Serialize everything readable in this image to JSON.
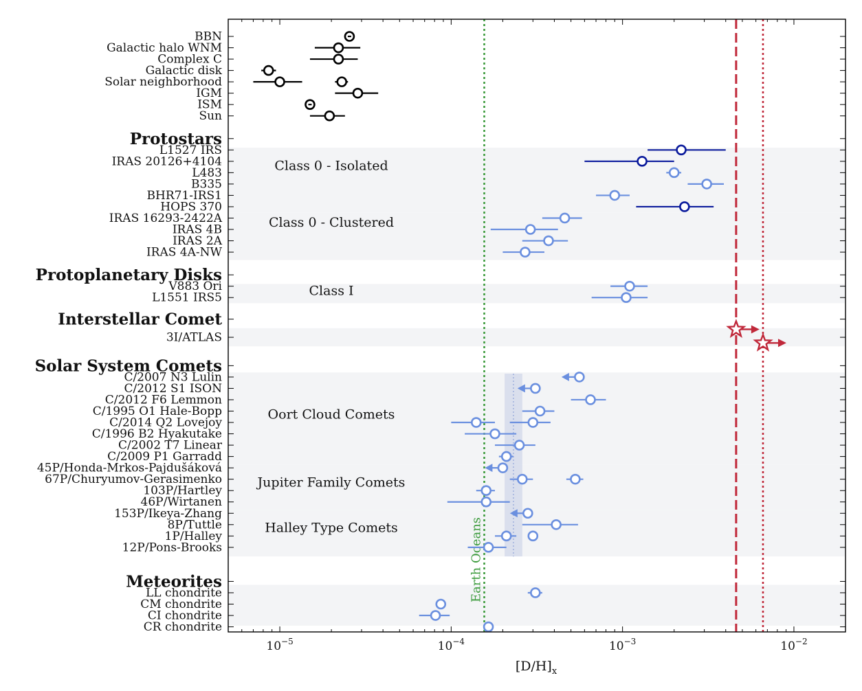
{
  "chart_data": {
    "type": "scatter",
    "xscale": "log",
    "xlim": [
      5e-06,
      0.02
    ],
    "xlabel": "[D/H]x",
    "xticks": [
      {
        "value": 1e-05,
        "base": "10",
        "exp": "−5"
      },
      {
        "value": 0.0001,
        "base": "10",
        "exp": "−4"
      },
      {
        "value": 0.001,
        "base": "10",
        "exp": "−3"
      },
      {
        "value": 0.01,
        "base": "10",
        "exp": "−2"
      }
    ],
    "colors": {
      "black": "#000000",
      "navy": "#0a1a9c",
      "light": "#6a8fdf",
      "red": "#c0283a",
      "green": "#3a9a3a",
      "band": "#f3f4f6",
      "shade": "#c5cde6"
    },
    "headers": [
      {
        "text": "Protostars",
        "row": 9.0
      },
      {
        "text": "Protoplanetary Disks",
        "row": 21.0
      },
      {
        "text": "Interstellar Comet",
        "row": 24.9
      },
      {
        "text": "Solar System Comets",
        "row": 29.0
      }
    ],
    "groups": [
      {
        "text": "Class 0 - Isolated",
        "row": 11.4
      },
      {
        "text": "Class 0 - Clustered",
        "row": 16.4
      },
      {
        "text": "Class I",
        "row": 22.4
      },
      {
        "text": "Oort Cloud Comets",
        "row": 33.3
      },
      {
        "text": "Jupiter Family Comets",
        "row": 39.3
      },
      {
        "text": "Halley Type Comets",
        "row": 43.3
      }
    ],
    "bands": [
      [
        9.8,
        15.5
      ],
      [
        15.5,
        19.7
      ],
      [
        21.8,
        23.5
      ],
      [
        25.7,
        27.3
      ],
      [
        29.6,
        37.7
      ],
      [
        37.7,
        41.7
      ],
      [
        41.7,
        45.8
      ],
      [
        48.3,
        51.9
      ]
    ],
    "reference_lines": [
      {
        "value": 0.000156,
        "style": "dotted",
        "color": "green",
        "label": "Earth Oceans"
      },
      {
        "value": 0.0046,
        "style": "dashed",
        "color": "red",
        "label": ""
      },
      {
        "value": 0.0066,
        "style": "dotted",
        "color": "red",
        "label": ""
      }
    ],
    "shaded_region": {
      "x_from": 0.000205,
      "x_to": 0.00026,
      "rows": [
        29.7,
        45.8
      ]
    },
    "points": [
      {
        "label": "BBN",
        "row": 0,
        "x": 2.55e-05,
        "lo": 2.5e-05,
        "hi": 2.6e-05,
        "color": "black",
        "marker": "circle",
        "dot": true
      },
      {
        "label": "Galactic halo WNM",
        "row": 1,
        "x": 2.2e-05,
        "lo": 1.6e-05,
        "hi": 2.95e-05,
        "color": "black",
        "marker": "circle"
      },
      {
        "label": "Complex C",
        "row": 2,
        "x": 2.2e-05,
        "lo": 1.5e-05,
        "hi": 2.85e-05,
        "color": "black",
        "marker": "circle"
      },
      {
        "label": "Galactic disk",
        "row": 3,
        "x": 8.6e-06,
        "lo": 7.8e-06,
        "hi": 9.5e-06,
        "color": "black",
        "marker": "circle"
      },
      {
        "label": "Solar neighborhood",
        "row": 4,
        "x": 1e-05,
        "lo": 7e-06,
        "hi": 1.35e-05,
        "color": "black",
        "marker": "circle"
      },
      {
        "label": "",
        "row": 4,
        "x": 2.3e-05,
        "lo": 2.1e-05,
        "hi": 2.5e-05,
        "color": "black",
        "marker": "circle"
      },
      {
        "label": "IGM",
        "row": 5,
        "x": 2.85e-05,
        "lo": 2.1e-05,
        "hi": 3.75e-05,
        "color": "black",
        "marker": "circle"
      },
      {
        "label": "ISM",
        "row": 6,
        "x": 1.5e-05,
        "lo": 1.45e-05,
        "hi": 1.55e-05,
        "color": "black",
        "marker": "circle",
        "dot": true
      },
      {
        "label": "Sun",
        "row": 7,
        "x": 1.95e-05,
        "lo": 1.5e-05,
        "hi": 2.4e-05,
        "color": "black",
        "marker": "circle"
      },
      {
        "label": "L1527 IRS",
        "row": 10,
        "x": 0.0022,
        "lo": 0.0014,
        "hi": 0.004,
        "color": "navy",
        "marker": "circle"
      },
      {
        "label": "IRAS 20126+4104",
        "row": 11,
        "x": 0.0013,
        "lo": 0.0006,
        "hi": 0.002,
        "color": "navy",
        "marker": "circle"
      },
      {
        "label": "L483",
        "row": 12,
        "x": 0.002,
        "lo": 0.0018,
        "hi": 0.0022,
        "color": "light",
        "marker": "circle"
      },
      {
        "label": "B335",
        "row": 13,
        "x": 0.0031,
        "lo": 0.0024,
        "hi": 0.0039,
        "color": "light",
        "marker": "circle"
      },
      {
        "label": "BHR71-IRS1",
        "row": 14,
        "x": 0.0009,
        "lo": 0.0007,
        "hi": 0.0011,
        "color": "light",
        "marker": "circle"
      },
      {
        "label": "HOPS 370",
        "row": 15,
        "x": 0.0023,
        "lo": 0.0012,
        "hi": 0.0034,
        "color": "navy",
        "marker": "circle"
      },
      {
        "label": "IRAS 16293-2422A",
        "row": 16,
        "x": 0.00046,
        "lo": 0.00034,
        "hi": 0.00058,
        "color": "light",
        "marker": "circle"
      },
      {
        "label": "IRAS 4B",
        "row": 17,
        "x": 0.00029,
        "lo": 0.00017,
        "hi": 0.00042,
        "color": "light",
        "marker": "circle"
      },
      {
        "label": "IRAS 2A",
        "row": 18,
        "x": 0.00037,
        "lo": 0.00026,
        "hi": 0.00048,
        "color": "light",
        "marker": "circle"
      },
      {
        "label": "IRAS 4A-NW",
        "row": 19,
        "x": 0.00027,
        "lo": 0.0002,
        "hi": 0.00035,
        "color": "light",
        "marker": "circle"
      },
      {
        "label": "V883 Ori",
        "row": 22,
        "x": 0.0011,
        "lo": 0.00085,
        "hi": 0.0014,
        "color": "light",
        "marker": "circle"
      },
      {
        "label": "L1551 IRS5",
        "row": 23,
        "x": 0.00105,
        "lo": 0.00066,
        "hi": 0.0014,
        "color": "light",
        "marker": "circle"
      },
      {
        "label": "3I/ATLAS",
        "row": 26.5,
        "x": 0.0046,
        "color": "red",
        "marker": "star",
        "arrow": "right",
        "yoff": -0.7
      },
      {
        "label": "",
        "row": 26.5,
        "x": 0.0066,
        "color": "red",
        "marker": "star",
        "arrow": "right",
        "yoff": 0.5
      },
      {
        "label": "C/2007 N3 Lulin",
        "row": 30,
        "x": 0.00056,
        "color": "light",
        "marker": "circle",
        "arrow": "left"
      },
      {
        "label": "C/2012 S1 ISON",
        "row": 31,
        "x": 0.00031,
        "color": "light",
        "marker": "circle",
        "arrow": "left"
      },
      {
        "label": "C/2012 F6 Lemmon",
        "row": 32,
        "x": 0.00065,
        "lo": 0.0005,
        "hi": 0.0008,
        "color": "light",
        "marker": "circle"
      },
      {
        "label": "C/1995 O1 Hale-Bopp",
        "row": 33,
        "x": 0.00033,
        "lo": 0.00026,
        "hi": 0.0004,
        "color": "light",
        "marker": "circle"
      },
      {
        "label": "C/2014 Q2 Lovejoy",
        "row": 34,
        "x": 0.00014,
        "lo": 0.0001,
        "hi": 0.00018,
        "color": "light",
        "marker": "circle"
      },
      {
        "label": "",
        "row": 34,
        "x": 0.0003,
        "lo": 0.00022,
        "hi": 0.00038,
        "color": "light",
        "marker": "circle"
      },
      {
        "label": "C/1996 B2 Hyakutake",
        "row": 35,
        "x": 0.00018,
        "lo": 0.00012,
        "hi": 0.00024,
        "color": "light",
        "marker": "circle"
      },
      {
        "label": "C/2002 T7 Linear",
        "row": 36,
        "x": 0.00025,
        "lo": 0.00018,
        "hi": 0.00031,
        "color": "light",
        "marker": "circle"
      },
      {
        "label": "C/2009 P1 Garradd",
        "row": 37,
        "x": 0.00021,
        "lo": 0.00019,
        "hi": 0.00023,
        "color": "light",
        "marker": "circle"
      },
      {
        "label": "45P/Honda-Mrkos-Pajdušáková",
        "row": 38,
        "x": 0.0002,
        "color": "light",
        "marker": "circle",
        "arrow": "left"
      },
      {
        "label": "67P/Churyumov-Gerasimenko",
        "row": 39,
        "x": 0.00053,
        "lo": 0.00047,
        "hi": 0.00059,
        "color": "light",
        "marker": "circle"
      },
      {
        "label": "",
        "row": 39,
        "x": 0.00026,
        "lo": 0.00022,
        "hi": 0.0003,
        "color": "light",
        "marker": "circle"
      },
      {
        "label": "103P/Hartley",
        "row": 40,
        "x": 0.00016,
        "lo": 0.00014,
        "hi": 0.00018,
        "color": "light",
        "marker": "circle"
      },
      {
        "label": "46P/Wirtanen",
        "row": 41,
        "x": 0.00016,
        "lo": 9.5e-05,
        "hi": 0.00022,
        "color": "light",
        "marker": "circle"
      },
      {
        "label": "153P/Ikeya-Zhang",
        "row": 42,
        "x": 0.00028,
        "color": "light",
        "marker": "circle",
        "arrow": "left"
      },
      {
        "label": "8P/Tuttle",
        "row": 43,
        "x": 0.00041,
        "lo": 0.00026,
        "hi": 0.00055,
        "color": "light",
        "marker": "circle"
      },
      {
        "label": "1P/Halley",
        "row": 44,
        "x": 0.00021,
        "lo": 0.00018,
        "hi": 0.00024,
        "color": "light",
        "marker": "circle"
      },
      {
        "label": "",
        "row": 44,
        "x": 0.0003,
        "lo": 0.00029,
        "hi": 0.00031,
        "color": "light",
        "marker": "circle"
      },
      {
        "label": "12P/Pons-Brooks",
        "row": 45,
        "x": 0.000165,
        "lo": 0.000125,
        "hi": 0.00021,
        "color": "light",
        "marker": "circle"
      },
      {
        "label": "LL chondrite",
        "row": 49,
        "x": 0.00031,
        "lo": 0.00028,
        "hi": 0.00034,
        "color": "light",
        "marker": "circle"
      },
      {
        "label": "CM chondrite",
        "row": 50,
        "x": 8.7e-05,
        "lo": 8.3e-05,
        "hi": 9.1e-05,
        "color": "light",
        "marker": "circle"
      },
      {
        "label": "CI chondrite",
        "row": 51,
        "x": 8.1e-05,
        "lo": 6.5e-05,
        "hi": 9.8e-05,
        "color": "light",
        "marker": "circle"
      },
      {
        "label": "CR chondrite",
        "row": 52,
        "x": 0.000165,
        "lo": 0.00016,
        "hi": 0.00017,
        "color": "light",
        "marker": "circle"
      }
    ],
    "meteorites_header": {
      "text": "Meteorites",
      "row": 48.0
    }
  }
}
